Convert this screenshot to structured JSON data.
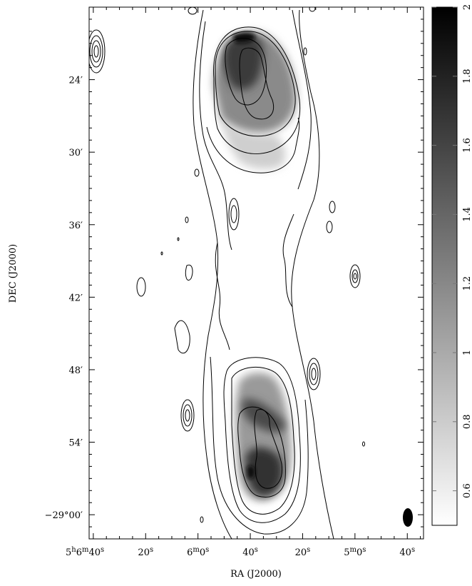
{
  "chart_data": {
    "type": "heatmap",
    "title": "",
    "xlabel": "RA (J2000)",
    "ylabel": "DEC (J2000)",
    "x_ticks": [
      {
        "label": "5h6m40s",
        "parts": [
          "5",
          "h",
          "6",
          "m",
          "40",
          "s"
        ],
        "ra_sec": 400
      },
      {
        "label": "20s",
        "parts": [
          "20",
          "s"
        ],
        "ra_sec": 380
      },
      {
        "label": "6m0s",
        "parts": [
          "6",
          "m",
          "0",
          "s"
        ],
        "ra_sec": 360
      },
      {
        "label": "40s",
        "parts": [
          "40",
          "s"
        ],
        "ra_sec": 340
      },
      {
        "label": "20s",
        "parts": [
          "20",
          "s"
        ],
        "ra_sec": 320
      },
      {
        "label": "5m0s",
        "parts": [
          "5",
          "m",
          "0",
          "s"
        ],
        "ra_sec": 300
      },
      {
        "label": "40s",
        "parts": [
          "40",
          "s"
        ],
        "ra_sec": 280
      }
    ],
    "x_range_sec": [
      401.6,
      273.8
    ],
    "y_ticks": [
      {
        "label": "24′",
        "dec_min": -24
      },
      {
        "label": "30′",
        "dec_min": -30
      },
      {
        "label": "36′",
        "dec_min": -36
      },
      {
        "label": "42′",
        "dec_min": -42
      },
      {
        "label": "48′",
        "dec_min": -48
      },
      {
        "label": "54′",
        "dec_min": -54
      },
      {
        "label": "−29°00′",
        "dec_min": -60
      }
    ],
    "y_range_min": [
      -18.0,
      -62.0
    ],
    "colorbar": {
      "min": 0.5,
      "max": 2,
      "ticks": [
        "0.6",
        "0.8",
        "1",
        "1.2",
        "1.4",
        "1.6",
        "1.8",
        "2"
      ],
      "orientation": "vertical",
      "placement": "right",
      "colormap": "gray-inverted"
    },
    "features": [
      {
        "name": "northern lobe",
        "ra_sec": 341,
        "dec_min": -24.5,
        "peak": 1.95
      },
      {
        "name": "southern lobe",
        "ra_sec": 339,
        "dec_min": -55.5,
        "peak": 1.9
      },
      {
        "name": "compact source",
        "ra_sec": 400,
        "dec_min": -21.8
      },
      {
        "name": "compact source",
        "ra_sec": 337,
        "dec_min": -35.6
      },
      {
        "name": "compact source",
        "ra_sec": 320,
        "dec_min": -42.8
      },
      {
        "name": "compact source",
        "ra_sec": 322,
        "dec_min": -48.8
      },
      {
        "name": "compact source",
        "ra_sec": 373,
        "dec_min": -52.3
      }
    ],
    "beam": {
      "ra_sec": 277,
      "dec_min": -60.8
    }
  }
}
